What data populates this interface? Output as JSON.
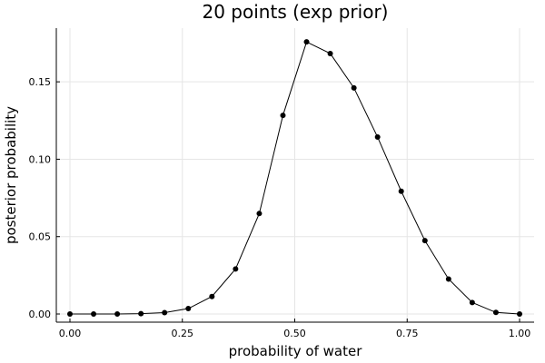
{
  "chart_data": {
    "type": "line",
    "title": "20 points (exp prior)",
    "xlabel": "probability of water",
    "ylabel": "posterior probability",
    "xlim": [
      0,
      1
    ],
    "ylim": [
      0,
      0.18
    ],
    "xticks": [
      "0.00",
      "0.25",
      "0.50",
      "0.75",
      "1.00"
    ],
    "yticks": [
      "0.00",
      "0.05",
      "0.10",
      "0.15"
    ],
    "grid": true,
    "legend": false,
    "series": [
      {
        "x": [
          0.0,
          0.0526,
          0.1053,
          0.1579,
          0.2105,
          0.2632,
          0.3158,
          0.3684,
          0.4211,
          0.4737,
          0.5263,
          0.5789,
          0.6316,
          0.6842,
          0.7368,
          0.7895,
          0.8421,
          0.8947,
          0.9474,
          1.0
        ],
        "y": [
          0.0,
          0.0,
          0.0,
          0.0002,
          0.0009,
          0.0035,
          0.0113,
          0.0291,
          0.0649,
          0.1283,
          0.1758,
          0.1683,
          0.1461,
          0.1143,
          0.0793,
          0.0474,
          0.0226,
          0.0074,
          0.001,
          0.0
        ]
      }
    ]
  }
}
